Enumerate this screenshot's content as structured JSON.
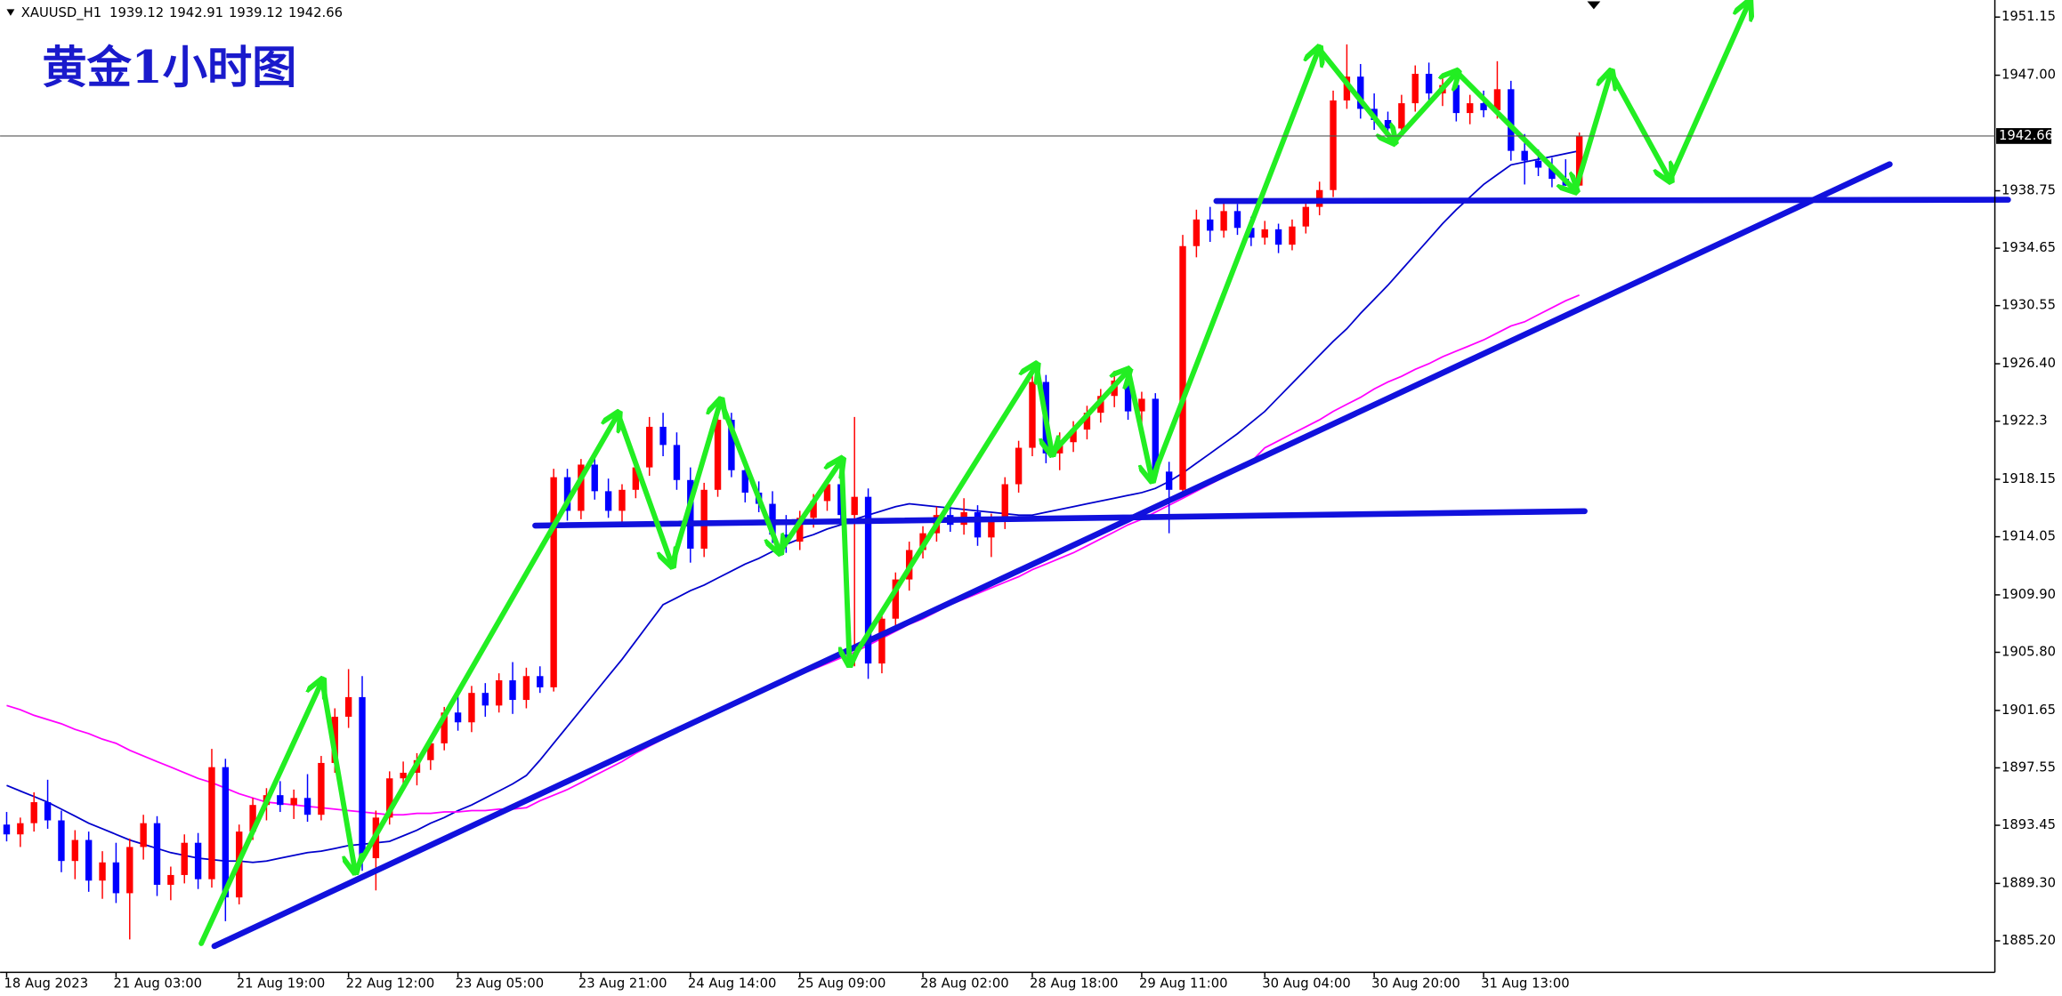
{
  "chart_data": {
    "type": "candlestick",
    "title": "黄金1小时图",
    "symbol": "XAUUSD_H1",
    "ohlc": [
      1939.12,
      1942.91,
      1939.12,
      1942.66
    ],
    "last_price": 1942.66,
    "up_color": "#ff0000",
    "down_color": "#0000ff",
    "ylim": [
      1882.95,
      1952.37
    ],
    "yticks": [
      1951.15,
      {
        "value": 1947.0,
        "label": "1947.00"
      },
      1938.75,
      1934.65,
      1930.55,
      {
        "value": 1926.4,
        "label": "1926.40"
      },
      1922.3,
      1918.15,
      1914.05,
      {
        "value": 1909.9,
        "label": "1909.90"
      },
      {
        "value": 1905.8,
        "label": "1905.80"
      },
      1901.65,
      1897.55,
      1893.45,
      {
        "value": 1889.3,
        "label": "1889.30"
      },
      {
        "value": 1885.2,
        "label": "1885.20"
      }
    ],
    "categories": [
      "18 Aug 2023",
      null,
      null,
      null,
      null,
      null,
      null,
      null,
      "21 Aug 03:00",
      null,
      null,
      null,
      null,
      null,
      null,
      null,
      null,
      "21 Aug 19:00",
      null,
      null,
      null,
      null,
      null,
      null,
      null,
      "22 Aug 12:00",
      null,
      null,
      null,
      null,
      null,
      null,
      null,
      "23 Aug 05:00",
      null,
      null,
      null,
      null,
      null,
      null,
      null,
      null,
      "23 Aug 21:00",
      null,
      null,
      null,
      null,
      null,
      null,
      null,
      "24 Aug 14:00",
      null,
      null,
      null,
      null,
      null,
      null,
      null,
      "25 Aug 09:00",
      null,
      null,
      null,
      null,
      null,
      null,
      null,
      null,
      "28 Aug 02:00",
      null,
      null,
      null,
      null,
      null,
      null,
      null,
      "28 Aug 18:00",
      null,
      null,
      null,
      null,
      null,
      null,
      null,
      "29 Aug 11:00",
      null,
      null,
      null,
      null,
      null,
      null,
      null,
      null,
      "30 Aug 04:00",
      null,
      null,
      null,
      null,
      null,
      null,
      null,
      "30 Aug 20:00",
      null,
      null,
      null,
      null,
      null,
      null,
      null,
      "31 Aug 13:00",
      null,
      null,
      null,
      null,
      null,
      null,
      null
    ],
    "candles": [
      [
        1893.5,
        1894.4,
        1892.3,
        1892.8
      ],
      [
        1892.8,
        1894.0,
        1891.9,
        1893.6
      ],
      [
        1893.6,
        1895.8,
        1893.0,
        1895.1
      ],
      [
        1895.1,
        1896.7,
        1893.2,
        1893.8
      ],
      [
        1893.8,
        1894.5,
        1890.1,
        1890.9
      ],
      [
        1890.9,
        1893.1,
        1889.6,
        1892.4
      ],
      [
        1892.4,
        1893.0,
        1888.7,
        1889.5
      ],
      [
        1889.5,
        1891.6,
        1888.2,
        1890.8
      ],
      [
        1890.8,
        1892.2,
        1887.9,
        1888.6
      ],
      [
        1888.6,
        1892.5,
        1885.3,
        1891.9
      ],
      [
        1891.9,
        1894.2,
        1891.0,
        1893.6
      ],
      [
        1893.6,
        1894.1,
        1888.4,
        1889.2
      ],
      [
        1889.2,
        1890.5,
        1888.1,
        1889.9
      ],
      [
        1889.9,
        1892.8,
        1889.3,
        1892.2
      ],
      [
        1892.2,
        1892.9,
        1888.9,
        1889.6
      ],
      [
        1889.6,
        1898.9,
        1889.0,
        1897.6
      ],
      [
        1897.6,
        1898.2,
        1886.6,
        1888.3
      ],
      [
        1888.3,
        1893.5,
        1887.8,
        1893.0
      ],
      [
        1893.0,
        1895.4,
        1892.4,
        1894.9
      ],
      [
        1894.9,
        1896.1,
        1893.8,
        1895.6
      ],
      [
        1895.6,
        1896.6,
        1894.4,
        1894.9
      ],
      [
        1894.9,
        1896.0,
        1893.9,
        1895.4
      ],
      [
        1895.4,
        1897.1,
        1893.7,
        1894.2
      ],
      [
        1894.2,
        1898.4,
        1893.8,
        1897.9
      ],
      [
        1897.9,
        1901.8,
        1897.2,
        1901.2
      ],
      [
        1901.2,
        1904.6,
        1900.4,
        1902.6
      ],
      [
        1902.6,
        1904.1,
        1890.2,
        1891.1
      ],
      [
        1891.1,
        1894.5,
        1888.8,
        1894.0
      ],
      [
        1894.0,
        1897.3,
        1893.5,
        1896.8
      ],
      [
        1896.8,
        1898.0,
        1895.9,
        1897.2
      ],
      [
        1897.2,
        1898.6,
        1896.3,
        1898.1
      ],
      [
        1898.1,
        1899.8,
        1897.4,
        1899.3
      ],
      [
        1899.3,
        1901.9,
        1898.8,
        1901.5
      ],
      [
        1901.5,
        1902.7,
        1900.2,
        1900.8
      ],
      [
        1900.8,
        1903.4,
        1900.1,
        1902.9
      ],
      [
        1902.9,
        1903.6,
        1901.2,
        1902.0
      ],
      [
        1902.0,
        1904.3,
        1901.5,
        1903.8
      ],
      [
        1903.8,
        1905.1,
        1901.4,
        1902.4
      ],
      [
        1902.4,
        1904.7,
        1901.8,
        1904.1
      ],
      [
        1904.1,
        1904.8,
        1902.9,
        1903.3
      ],
      [
        1903.3,
        1918.9,
        1903.0,
        1918.3
      ],
      [
        1918.3,
        1918.9,
        1915.2,
        1915.9
      ],
      [
        1915.9,
        1919.6,
        1915.3,
        1919.2
      ],
      [
        1919.2,
        1920.0,
        1916.7,
        1917.3
      ],
      [
        1917.3,
        1918.2,
        1915.4,
        1915.9
      ],
      [
        1915.9,
        1917.8,
        1915.1,
        1917.4
      ],
      [
        1917.4,
        1919.5,
        1916.8,
        1919.0
      ],
      [
        1919.0,
        1922.6,
        1918.4,
        1921.9
      ],
      [
        1921.9,
        1922.9,
        1919.8,
        1920.6
      ],
      [
        1920.6,
        1921.5,
        1917.4,
        1918.1
      ],
      [
        1918.1,
        1919.0,
        1912.2,
        1913.2
      ],
      [
        1913.2,
        1917.9,
        1912.6,
        1917.4
      ],
      [
        1917.4,
        1923.1,
        1916.9,
        1922.4
      ],
      [
        1922.4,
        1922.9,
        1918.3,
        1918.8
      ],
      [
        1918.8,
        1919.7,
        1916.5,
        1917.2
      ],
      [
        1917.2,
        1918.0,
        1915.8,
        1916.4
      ],
      [
        1916.4,
        1917.3,
        1913.6,
        1914.2
      ],
      [
        1914.2,
        1915.6,
        1912.9,
        1913.7
      ],
      [
        1913.7,
        1915.9,
        1913.1,
        1915.4
      ],
      [
        1915.4,
        1917.1,
        1914.7,
        1916.6
      ],
      [
        1916.6,
        1918.2,
        1915.9,
        1917.8
      ],
      [
        1917.8,
        1918.7,
        1915.1,
        1915.6
      ],
      [
        1915.6,
        1922.6,
        1904.8,
        1916.9
      ],
      [
        1916.9,
        1917.5,
        1903.9,
        1905.0
      ],
      [
        1905.0,
        1908.8,
        1904.3,
        1908.2
      ],
      [
        1908.2,
        1911.5,
        1907.6,
        1911.0
      ],
      [
        1911.0,
        1913.7,
        1910.2,
        1913.1
      ],
      [
        1913.1,
        1914.8,
        1912.5,
        1914.3
      ],
      [
        1914.3,
        1916.2,
        1913.7,
        1915.6
      ],
      [
        1915.6,
        1916.4,
        1914.4,
        1914.9
      ],
      [
        1914.9,
        1916.8,
        1914.2,
        1915.8
      ],
      [
        1915.8,
        1916.3,
        1913.4,
        1914.0
      ],
      [
        1914.0,
        1915.7,
        1912.6,
        1915.2
      ],
      [
        1915.2,
        1918.3,
        1914.6,
        1917.8
      ],
      [
        1917.8,
        1920.9,
        1917.2,
        1920.4
      ],
      [
        1920.4,
        1925.7,
        1919.8,
        1925.1
      ],
      [
        1925.1,
        1925.6,
        1919.3,
        1920.0
      ],
      [
        1920.0,
        1921.5,
        1918.8,
        1920.8
      ],
      [
        1920.8,
        1922.3,
        1920.1,
        1921.7
      ],
      [
        1921.7,
        1923.4,
        1921.0,
        1922.9
      ],
      [
        1922.9,
        1924.6,
        1922.2,
        1924.1
      ],
      [
        1924.1,
        1925.9,
        1923.3,
        1925.2
      ],
      [
        1925.2,
        1925.8,
        1922.4,
        1923.0
      ],
      [
        1923.0,
        1924.4,
        1921.6,
        1923.9
      ],
      [
        1923.9,
        1924.3,
        1918.0,
        1918.7
      ],
      [
        1918.7,
        1919.4,
        1914.3,
        1917.4
      ],
      [
        1917.4,
        1935.6,
        1917.0,
        1934.8
      ],
      [
        1934.8,
        1937.4,
        1934.0,
        1936.7
      ],
      [
        1936.7,
        1937.6,
        1935.1,
        1935.9
      ],
      [
        1935.9,
        1937.9,
        1935.4,
        1937.3
      ],
      [
        1937.3,
        1937.8,
        1935.6,
        1936.1
      ],
      [
        1936.1,
        1936.9,
        1934.8,
        1935.4
      ],
      [
        1935.4,
        1936.6,
        1934.9,
        1936.0
      ],
      [
        1936.0,
        1936.4,
        1934.3,
        1934.9
      ],
      [
        1934.9,
        1936.7,
        1934.5,
        1936.2
      ],
      [
        1936.2,
        1938.1,
        1935.7,
        1937.6
      ],
      [
        1937.6,
        1939.4,
        1937.0,
        1938.8
      ],
      [
        1938.8,
        1945.9,
        1938.3,
        1945.2
      ],
      [
        1945.2,
        1949.2,
        1944.6,
        1946.9
      ],
      [
        1946.9,
        1947.8,
        1943.9,
        1944.6
      ],
      [
        1944.6,
        1945.7,
        1943.1,
        1943.8
      ],
      [
        1943.8,
        1944.4,
        1942.5,
        1943.2
      ],
      [
        1943.2,
        1945.6,
        1942.8,
        1945.0
      ],
      [
        1945.0,
        1947.7,
        1944.4,
        1947.1
      ],
      [
        1947.1,
        1947.9,
        1945.1,
        1945.7
      ],
      [
        1945.7,
        1946.9,
        1944.8,
        1946.3
      ],
      [
        1946.3,
        1946.8,
        1943.7,
        1944.3
      ],
      [
        1944.3,
        1945.6,
        1943.5,
        1945.0
      ],
      [
        1945.0,
        1945.9,
        1944.0,
        1944.5
      ],
      [
        1944.5,
        1948.0,
        1943.9,
        1946.0
      ],
      [
        1946.0,
        1946.6,
        1940.9,
        1941.6
      ],
      [
        1941.6,
        1942.8,
        1939.2,
        1940.9
      ],
      [
        1940.9,
        1941.7,
        1939.8,
        1940.4
      ],
      [
        1940.4,
        1941.1,
        1939.0,
        1939.6
      ],
      [
        1939.6,
        1941.0,
        1939.1,
        1939.12
      ],
      [
        1939.12,
        1942.91,
        1939.12,
        1942.66
      ]
    ],
    "lines": [
      {
        "color": "#0000cc",
        "values": [
          1896.3,
          1895.9,
          1895.5,
          1895.1,
          1894.6,
          1894.1,
          1893.6,
          1893.2,
          1892.8,
          1892.4,
          1892.1,
          1891.8,
          1891.5,
          1891.3,
          1891.1,
          1891.0,
          1890.9,
          1890.9,
          1890.8,
          1890.9,
          1891.1,
          1891.3,
          1891.5,
          1891.6,
          1891.8,
          1892.0,
          1892.1,
          1892.2,
          1892.3,
          1892.7,
          1893.1,
          1893.6,
          1894.0,
          1894.5,
          1894.9,
          1895.4,
          1895.9,
          1896.4,
          1897.0,
          1898.1,
          1899.3,
          1900.5,
          1901.7,
          1902.9,
          1904.1,
          1905.3,
          1906.6,
          1907.9,
          1909.2,
          1909.7,
          1910.2,
          1910.6,
          1911.1,
          1911.6,
          1912.1,
          1912.5,
          1913.0,
          1913.5,
          1913.9,
          1914.2,
          1914.6,
          1914.9,
          1915.3,
          1915.6,
          1915.9,
          1916.2,
          1916.4,
          1916.3,
          1916.2,
          1916.1,
          1916.0,
          1915.9,
          1915.8,
          1915.7,
          1915.6,
          1915.6,
          1915.8,
          1916.0,
          1916.2,
          1916.4,
          1916.6,
          1916.8,
          1917.0,
          1917.2,
          1917.5,
          1918.0,
          1918.6,
          1919.3,
          1920.0,
          1920.7,
          1921.4,
          1922.2,
          1923.0,
          1924.0,
          1925.0,
          1926.0,
          1927.0,
          1928.0,
          1928.9,
          1930.0,
          1931.0,
          1932.0,
          1933.1,
          1934.2,
          1935.3,
          1936.4,
          1937.4,
          1938.3,
          1939.2,
          1939.9,
          1940.6,
          1940.8,
          1941.0,
          1941.2,
          1941.4,
          1941.6
        ]
      },
      {
        "color": "#ff00ff",
        "values": [
          1902.0,
          1901.7,
          1901.3,
          1901.0,
          1900.7,
          1900.3,
          1900.0,
          1899.6,
          1899.3,
          1898.8,
          1898.4,
          1898.0,
          1897.6,
          1897.2,
          1896.8,
          1896.5,
          1896.1,
          1895.7,
          1895.4,
          1895.1,
          1895.0,
          1894.9,
          1894.8,
          1894.7,
          1894.6,
          1894.5,
          1894.4,
          1894.3,
          1894.2,
          1894.2,
          1894.3,
          1894.3,
          1894.4,
          1894.4,
          1894.5,
          1894.5,
          1894.6,
          1894.6,
          1894.7,
          1895.2,
          1895.6,
          1896.0,
          1896.5,
          1897.0,
          1897.5,
          1898.0,
          1898.6,
          1899.1,
          1899.6,
          1900.1,
          1900.6,
          1901.1,
          1901.6,
          1902.1,
          1902.5,
          1902.9,
          1903.3,
          1903.7,
          1904.2,
          1904.6,
          1905.0,
          1905.4,
          1905.8,
          1906.3,
          1906.8,
          1907.3,
          1907.8,
          1908.2,
          1908.7,
          1909.2,
          1909.6,
          1910.0,
          1910.4,
          1910.8,
          1911.2,
          1911.7,
          1912.1,
          1912.5,
          1912.9,
          1913.4,
          1913.9,
          1914.4,
          1914.9,
          1915.3,
          1915.8,
          1916.3,
          1916.8,
          1917.3,
          1917.8,
          1918.3,
          1918.8,
          1919.4,
          1920.4,
          1920.9,
          1921.4,
          1921.9,
          1922.4,
          1923.0,
          1923.5,
          1924.0,
          1924.6,
          1925.1,
          1925.5,
          1926.0,
          1926.4,
          1926.9,
          1927.3,
          1927.7,
          1928.1,
          1928.6,
          1929.1,
          1929.4,
          1929.9,
          1930.4,
          1930.9,
          1931.3
        ]
      }
    ]
  }
}
